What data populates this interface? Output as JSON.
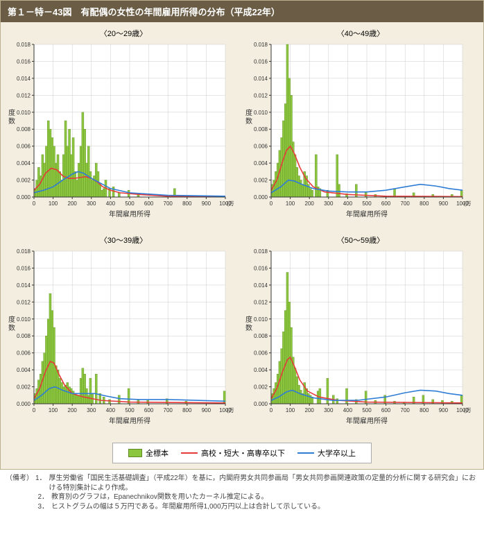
{
  "title": "第１－特－43図　有配偶の女性の年間雇用所得の分布（平成22年）",
  "panel_titles": [
    "〈20～29歳〉",
    "〈40～49歳〉",
    "〈30～39歳〉",
    "〈50～59歳〉"
  ],
  "axis": {
    "x_label": "年間雇用所得",
    "x_unit": "(万円)",
    "y_label": "度数",
    "xlim": [
      0,
      1000
    ],
    "ylim": [
      0,
      0.018
    ],
    "xtick_step": 100,
    "ytick_step": 0.002,
    "grid_color": "#cccccc",
    "axis_color": "#333333",
    "font_size_tick": 8,
    "font_size_label": 10
  },
  "colors": {
    "background": "#f4eee0",
    "bar_fill": "#8cc63f",
    "bar_stroke": "#5a8a20",
    "line_red": "#e63938",
    "line_blue": "#2e7cd6",
    "title_bar_bg": "#6b5d45",
    "title_bar_fg": "#ffffff"
  },
  "bar_width_data": 5,
  "legend": {
    "s1": "全標本",
    "s2": "高校・短大・高専卒以下",
    "s3": "大学卒以上"
  },
  "panels": [
    {
      "bars": [
        [
          5,
          0.001
        ],
        [
          15,
          0.002
        ],
        [
          25,
          0.0035
        ],
        [
          35,
          0.0025
        ],
        [
          45,
          0.005
        ],
        [
          55,
          0.004
        ],
        [
          65,
          0.006
        ],
        [
          75,
          0.009
        ],
        [
          85,
          0.008
        ],
        [
          95,
          0.007
        ],
        [
          105,
          0.006
        ],
        [
          115,
          0.004
        ],
        [
          125,
          0.005
        ],
        [
          135,
          0.003
        ],
        [
          145,
          0.002
        ],
        [
          155,
          0.005
        ],
        [
          165,
          0.009
        ],
        [
          175,
          0.006
        ],
        [
          185,
          0.008
        ],
        [
          195,
          0.005
        ],
        [
          205,
          0.007
        ],
        [
          215,
          0.003
        ],
        [
          225,
          0.002
        ],
        [
          235,
          0.004
        ],
        [
          245,
          0.006
        ],
        [
          255,
          0.01
        ],
        [
          265,
          0.008
        ],
        [
          275,
          0.004
        ],
        [
          285,
          0.006
        ],
        [
          295,
          0.003
        ],
        [
          305,
          0.002
        ],
        [
          315,
          0.0025
        ],
        [
          325,
          0.004
        ],
        [
          335,
          0.003
        ],
        [
          345,
          0.0015
        ],
        [
          355,
          0.0008
        ],
        [
          365,
          0.001
        ],
        [
          375,
          0.002
        ],
        [
          395,
          0.001
        ],
        [
          415,
          0.0012
        ],
        [
          445,
          0.0005
        ],
        [
          495,
          0.0008
        ],
        [
          545,
          0.0003
        ],
        [
          735,
          0.001
        ]
      ],
      "red": [
        [
          0,
          0.0008
        ],
        [
          30,
          0.0015
        ],
        [
          60,
          0.0028
        ],
        [
          90,
          0.0034
        ],
        [
          120,
          0.0032
        ],
        [
          150,
          0.0025
        ],
        [
          180,
          0.0022
        ],
        [
          210,
          0.0022
        ],
        [
          240,
          0.0023
        ],
        [
          270,
          0.0024
        ],
        [
          300,
          0.0022
        ],
        [
          330,
          0.0018
        ],
        [
          360,
          0.0012
        ],
        [
          400,
          0.0008
        ],
        [
          450,
          0.0005
        ],
        [
          550,
          0.0003
        ],
        [
          700,
          0.0001
        ],
        [
          1000,
          5e-05
        ]
      ],
      "blue": [
        [
          0,
          0.0005
        ],
        [
          50,
          0.0008
        ],
        [
          100,
          0.0012
        ],
        [
          150,
          0.002
        ],
        [
          200,
          0.0027
        ],
        [
          230,
          0.003
        ],
        [
          260,
          0.0028
        ],
        [
          300,
          0.0022
        ],
        [
          350,
          0.0016
        ],
        [
          400,
          0.001
        ],
        [
          500,
          0.0005
        ],
        [
          700,
          0.0002
        ],
        [
          1000,
          0.0001
        ]
      ]
    },
    {
      "bars": [
        [
          5,
          0.0015
        ],
        [
          15,
          0.002
        ],
        [
          25,
          0.003
        ],
        [
          35,
          0.004
        ],
        [
          45,
          0.0055
        ],
        [
          55,
          0.007
        ],
        [
          65,
          0.009
        ],
        [
          75,
          0.011
        ],
        [
          85,
          0.018
        ],
        [
          95,
          0.014
        ],
        [
          105,
          0.012
        ],
        [
          115,
          0.0065
        ],
        [
          125,
          0.005
        ],
        [
          135,
          0.0035
        ],
        [
          145,
          0.0025
        ],
        [
          155,
          0.002
        ],
        [
          165,
          0.0015
        ],
        [
          175,
          0.003
        ],
        [
          185,
          0.0025
        ],
        [
          195,
          0.0015
        ],
        [
          205,
          0.001
        ],
        [
          215,
          0.0008
        ],
        [
          235,
          0.005
        ],
        [
          245,
          0.0012
        ],
        [
          255,
          0.001
        ],
        [
          295,
          0.0008
        ],
        [
          345,
          0.005
        ],
        [
          355,
          0.0015
        ],
        [
          395,
          0.0004
        ],
        [
          445,
          0.0015
        ],
        [
          495,
          0.0006
        ],
        [
          545,
          0.0003
        ],
        [
          645,
          0.001
        ],
        [
          745,
          0.0005
        ],
        [
          845,
          0.0003
        ],
        [
          945,
          0.0003
        ],
        [
          995,
          0.0008
        ]
      ],
      "red": [
        [
          0,
          0.0008
        ],
        [
          30,
          0.002
        ],
        [
          60,
          0.0042
        ],
        [
          80,
          0.0055
        ],
        [
          100,
          0.006
        ],
        [
          120,
          0.0052
        ],
        [
          150,
          0.0035
        ],
        [
          180,
          0.0022
        ],
        [
          220,
          0.0012
        ],
        [
          280,
          0.0006
        ],
        [
          400,
          0.0003
        ],
        [
          600,
          0.0001
        ],
        [
          1000,
          5e-05
        ]
      ],
      "blue": [
        [
          0,
          0.0005
        ],
        [
          50,
          0.0012
        ],
        [
          90,
          0.002
        ],
        [
          120,
          0.0019
        ],
        [
          160,
          0.0015
        ],
        [
          220,
          0.001
        ],
        [
          300,
          0.0007
        ],
        [
          400,
          0.0006
        ],
        [
          500,
          0.0006
        ],
        [
          600,
          0.0008
        ],
        [
          700,
          0.0012
        ],
        [
          780,
          0.0015
        ],
        [
          860,
          0.0013
        ],
        [
          930,
          0.001
        ],
        [
          1000,
          0.0008
        ]
      ]
    },
    {
      "bars": [
        [
          5,
          0.0012
        ],
        [
          15,
          0.0018
        ],
        [
          25,
          0.0028
        ],
        [
          35,
          0.0035
        ],
        [
          45,
          0.005
        ],
        [
          55,
          0.006
        ],
        [
          65,
          0.008
        ],
        [
          75,
          0.01
        ],
        [
          85,
          0.013
        ],
        [
          95,
          0.011
        ],
        [
          105,
          0.009
        ],
        [
          115,
          0.0045
        ],
        [
          125,
          0.004
        ],
        [
          135,
          0.003
        ],
        [
          145,
          0.0025
        ],
        [
          155,
          0.002
        ],
        [
          165,
          0.0022
        ],
        [
          175,
          0.0025
        ],
        [
          185,
          0.002
        ],
        [
          195,
          0.0018
        ],
        [
          205,
          0.0015
        ],
        [
          215,
          0.0012
        ],
        [
          225,
          0.001
        ],
        [
          235,
          0.001
        ],
        [
          245,
          0.003
        ],
        [
          255,
          0.0042
        ],
        [
          265,
          0.0035
        ],
        [
          275,
          0.0018
        ],
        [
          285,
          0.001
        ],
        [
          295,
          0.003
        ],
        [
          305,
          0.0012
        ],
        [
          325,
          0.0035
        ],
        [
          345,
          0.0012
        ],
        [
          365,
          0.0008
        ],
        [
          395,
          0.0005
        ],
        [
          445,
          0.001
        ],
        [
          495,
          0.0018
        ],
        [
          545,
          0.0005
        ],
        [
          595,
          0.0004
        ],
        [
          695,
          0.0006
        ],
        [
          795,
          0.0003
        ],
        [
          995,
          0.0015
        ]
      ],
      "red": [
        [
          0,
          0.0006
        ],
        [
          30,
          0.0018
        ],
        [
          60,
          0.0038
        ],
        [
          85,
          0.005
        ],
        [
          105,
          0.0048
        ],
        [
          130,
          0.0035
        ],
        [
          160,
          0.0022
        ],
        [
          200,
          0.0012
        ],
        [
          260,
          0.0008
        ],
        [
          350,
          0.0004
        ],
        [
          500,
          0.0002
        ],
        [
          1000,
          0.0001
        ]
      ],
      "blue": [
        [
          0,
          0.0004
        ],
        [
          40,
          0.001
        ],
        [
          80,
          0.0018
        ],
        [
          110,
          0.002
        ],
        [
          150,
          0.0016
        ],
        [
          200,
          0.0012
        ],
        [
          260,
          0.0012
        ],
        [
          320,
          0.0012
        ],
        [
          380,
          0.0009
        ],
        [
          450,
          0.0006
        ],
        [
          550,
          0.0005
        ],
        [
          700,
          0.0005
        ],
        [
          850,
          0.0004
        ],
        [
          1000,
          0.0003
        ]
      ]
    },
    {
      "bars": [
        [
          5,
          0.0012
        ],
        [
          15,
          0.0018
        ],
        [
          25,
          0.0025
        ],
        [
          35,
          0.0035
        ],
        [
          45,
          0.005
        ],
        [
          55,
          0.0065
        ],
        [
          65,
          0.0085
        ],
        [
          75,
          0.011
        ],
        [
          85,
          0.0155
        ],
        [
          95,
          0.012
        ],
        [
          105,
          0.009
        ],
        [
          115,
          0.0055
        ],
        [
          125,
          0.0042
        ],
        [
          135,
          0.0032
        ],
        [
          145,
          0.0022
        ],
        [
          155,
          0.0016
        ],
        [
          165,
          0.0012
        ],
        [
          175,
          0.0025
        ],
        [
          185,
          0.0018
        ],
        [
          195,
          0.0012
        ],
        [
          205,
          0.001
        ],
        [
          215,
          0.0008
        ],
        [
          245,
          0.0015
        ],
        [
          255,
          0.0018
        ],
        [
          295,
          0.003
        ],
        [
          325,
          0.001
        ],
        [
          345,
          0.0006
        ],
        [
          395,
          0.0018
        ],
        [
          445,
          0.0005
        ],
        [
          495,
          0.0015
        ],
        [
          545,
          0.0004
        ],
        [
          595,
          0.001
        ],
        [
          645,
          0.0003
        ],
        [
          695,
          0.0002
        ],
        [
          745,
          0.0008
        ],
        [
          795,
          0.001
        ],
        [
          845,
          0.0005
        ],
        [
          895,
          0.0004
        ],
        [
          945,
          0.0003
        ],
        [
          995,
          0.001
        ]
      ],
      "red": [
        [
          0,
          0.0006
        ],
        [
          30,
          0.0018
        ],
        [
          60,
          0.0038
        ],
        [
          85,
          0.0052
        ],
        [
          100,
          0.0055
        ],
        [
          120,
          0.0045
        ],
        [
          150,
          0.0028
        ],
        [
          190,
          0.0015
        ],
        [
          250,
          0.0008
        ],
        [
          350,
          0.0004
        ],
        [
          500,
          0.0002
        ],
        [
          1000,
          0.0001
        ]
      ],
      "blue": [
        [
          0,
          0.0004
        ],
        [
          40,
          0.0008
        ],
        [
          80,
          0.0014
        ],
        [
          110,
          0.0016
        ],
        [
          150,
          0.0012
        ],
        [
          220,
          0.0007
        ],
        [
          320,
          0.0004
        ],
        [
          450,
          0.0004
        ],
        [
          600,
          0.0008
        ],
        [
          700,
          0.0013
        ],
        [
          780,
          0.0016
        ],
        [
          860,
          0.0015
        ],
        [
          930,
          0.0012
        ],
        [
          1000,
          0.001
        ]
      ]
    }
  ],
  "footnote_label": "（備考）",
  "footnotes": [
    "厚生労働省「国民生活基礎調査」（平成22年）を基に，内閣府男女共同参画局「男女共同参画関連政策の定量的分析に関する研究会」における特別集計により作成。",
    "教育別のグラフは，Epanechnikov関数を用いたカーネル推定による。",
    "ヒストグラムの幅は５万円である。年間雇用所得1,000万円以上は合計して示している。"
  ]
}
